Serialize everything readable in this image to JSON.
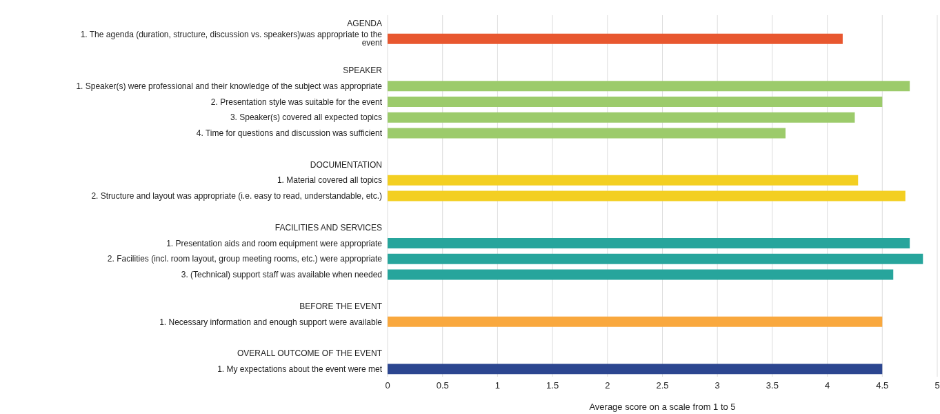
{
  "chart_data": {
    "type": "bar",
    "orientation": "horizontal",
    "xlabel": "Average score on a scale from 1 to 5",
    "categories": [
      "AGENDA",
      "1. The agenda  (duration, structure, discussion vs. speakers)was appropriate to the event",
      null,
      "SPEAKER",
      "1. Speaker(s) were professional and their knowledge of the subject was appropriate",
      "2. Presentation style was suitable for the event",
      "3. Speaker(s) covered all expected topics",
      "4. Time for questions and discussion was sufficient",
      null,
      "DOCUMENTATION",
      "1. Material covered all topics",
      "2. Structure and layout was appropriate (i.e. easy to read, understandable, etc.)",
      null,
      "FACILITIES AND SERVICES",
      "1. Presentation aids and room equipment were appropriate",
      "2. Facilities (incl. room layout, group meeting rooms, etc.) were appropriate",
      "3. (Technical) support staff was available when needed",
      null,
      "BEFORE THE EVENT",
      "1. Necessary information and enough support were available",
      null,
      "OVERALL OUTCOME OF THE EVENT",
      "1. My expectations about the event were met"
    ],
    "values": [
      null,
      4.14,
      null,
      null,
      4.75,
      4.5,
      4.25,
      3.62,
      null,
      null,
      4.28,
      4.71,
      null,
      null,
      4.75,
      4.87,
      4.6,
      null,
      null,
      4.5,
      null,
      null,
      4.5
    ],
    "colors": [
      null,
      "#e8572f",
      null,
      null,
      "#9ccb6b",
      "#9ccb6b",
      "#9ccb6b",
      "#9ccb6b",
      null,
      null,
      "#f3cf22",
      "#f3cf22",
      null,
      null,
      "#27a59c",
      "#27a59c",
      "#27a59c",
      null,
      null,
      "#f9a83e",
      null,
      null,
      "#2c4690"
    ],
    "xlim": [
      0,
      5
    ],
    "xticks": [
      0,
      0.5,
      1,
      1.5,
      2,
      2.5,
      3,
      3.5,
      4,
      4.5,
      5
    ],
    "grid": "x"
  }
}
